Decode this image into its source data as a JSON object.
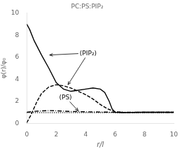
{
  "chart_data": {
    "type": "line",
    "title": "PC:PS:PIP₂",
    "xlabel": "r/l",
    "ylabel": "φ(r)/φ₀",
    "xlim": [
      0,
      10
    ],
    "ylim": [
      0,
      10
    ],
    "xticks": [
      0,
      2,
      4,
      6,
      8,
      10
    ],
    "yticks": [
      0,
      2,
      4,
      6,
      8,
      10
    ],
    "grid": false,
    "background_color": "#ffffff",
    "series": [
      {
        "color": "#000000",
        "line_style": "solid",
        "x": [
          0,
          0.2,
          0.5,
          1.0,
          1.5,
          2.0,
          2.5,
          3.0,
          3.5,
          4.0,
          4.5,
          5.0,
          5.3,
          5.6,
          5.8,
          6.0,
          6.5,
          7.0,
          8.0,
          9.0,
          10.0
        ],
        "values": [
          9.0,
          8.5,
          7.5,
          6.2,
          5.0,
          3.7,
          3.1,
          2.9,
          3.0,
          3.1,
          3.2,
          3.1,
          2.8,
          2.0,
          1.3,
          1.0,
          0.97,
          0.98,
          1.0,
          1.0,
          1.0
        ]
      },
      {
        "color": "#000000",
        "line_style": "dashed",
        "x": [
          0,
          0.3,
          0.7,
          1.0,
          1.5,
          2.0,
          2.5,
          3.0,
          3.5,
          4.0,
          4.5,
          5.0,
          5.5,
          6.0,
          6.5,
          7.0,
          8.0,
          9.0,
          10.0
        ],
        "values": [
          0.05,
          0.8,
          2.0,
          2.7,
          3.3,
          3.5,
          3.4,
          3.2,
          2.9,
          2.6,
          2.2,
          1.7,
          1.3,
          1.05,
          1.0,
          0.98,
          1.0,
          1.0,
          1.0
        ]
      },
      {
        "color": "#000000",
        "line_style": "dashdot",
        "x": [
          0,
          0.5,
          1.0,
          1.5,
          2.0,
          2.5,
          3.0,
          4.0,
          5.0,
          6.0,
          7.0,
          8.0,
          9.0,
          10.0
        ],
        "values": [
          1.0,
          1.08,
          1.12,
          1.15,
          1.13,
          1.1,
          1.07,
          1.04,
          1.02,
          1.0,
          1.0,
          1.0,
          1.0,
          1.0
        ]
      },
      {
        "color": "#000000",
        "line_style": "dotted",
        "x": [
          0,
          1.0,
          2.0,
          3.0,
          4.0,
          5.0,
          6.0,
          7.0,
          8.0,
          9.0,
          10.0
        ],
        "values": [
          0.97,
          0.97,
          0.97,
          0.97,
          0.97,
          0.97,
          0.97,
          0.97,
          0.97,
          0.97,
          0.97
        ]
      }
    ],
    "annotations": [
      {
        "text": "(PIP₂)",
        "x": 3.6,
        "y": 6.2,
        "point_to": [
          {
            "x": 1.55,
            "y": 6.2
          },
          {
            "x": 2.8,
            "y": 3.5
          }
        ]
      },
      {
        "text": "(PS)",
        "x": 2.2,
        "y": 2.2,
        "point_to": [
          {
            "x": 3.5,
            "y": 1.12
          }
        ]
      }
    ]
  }
}
